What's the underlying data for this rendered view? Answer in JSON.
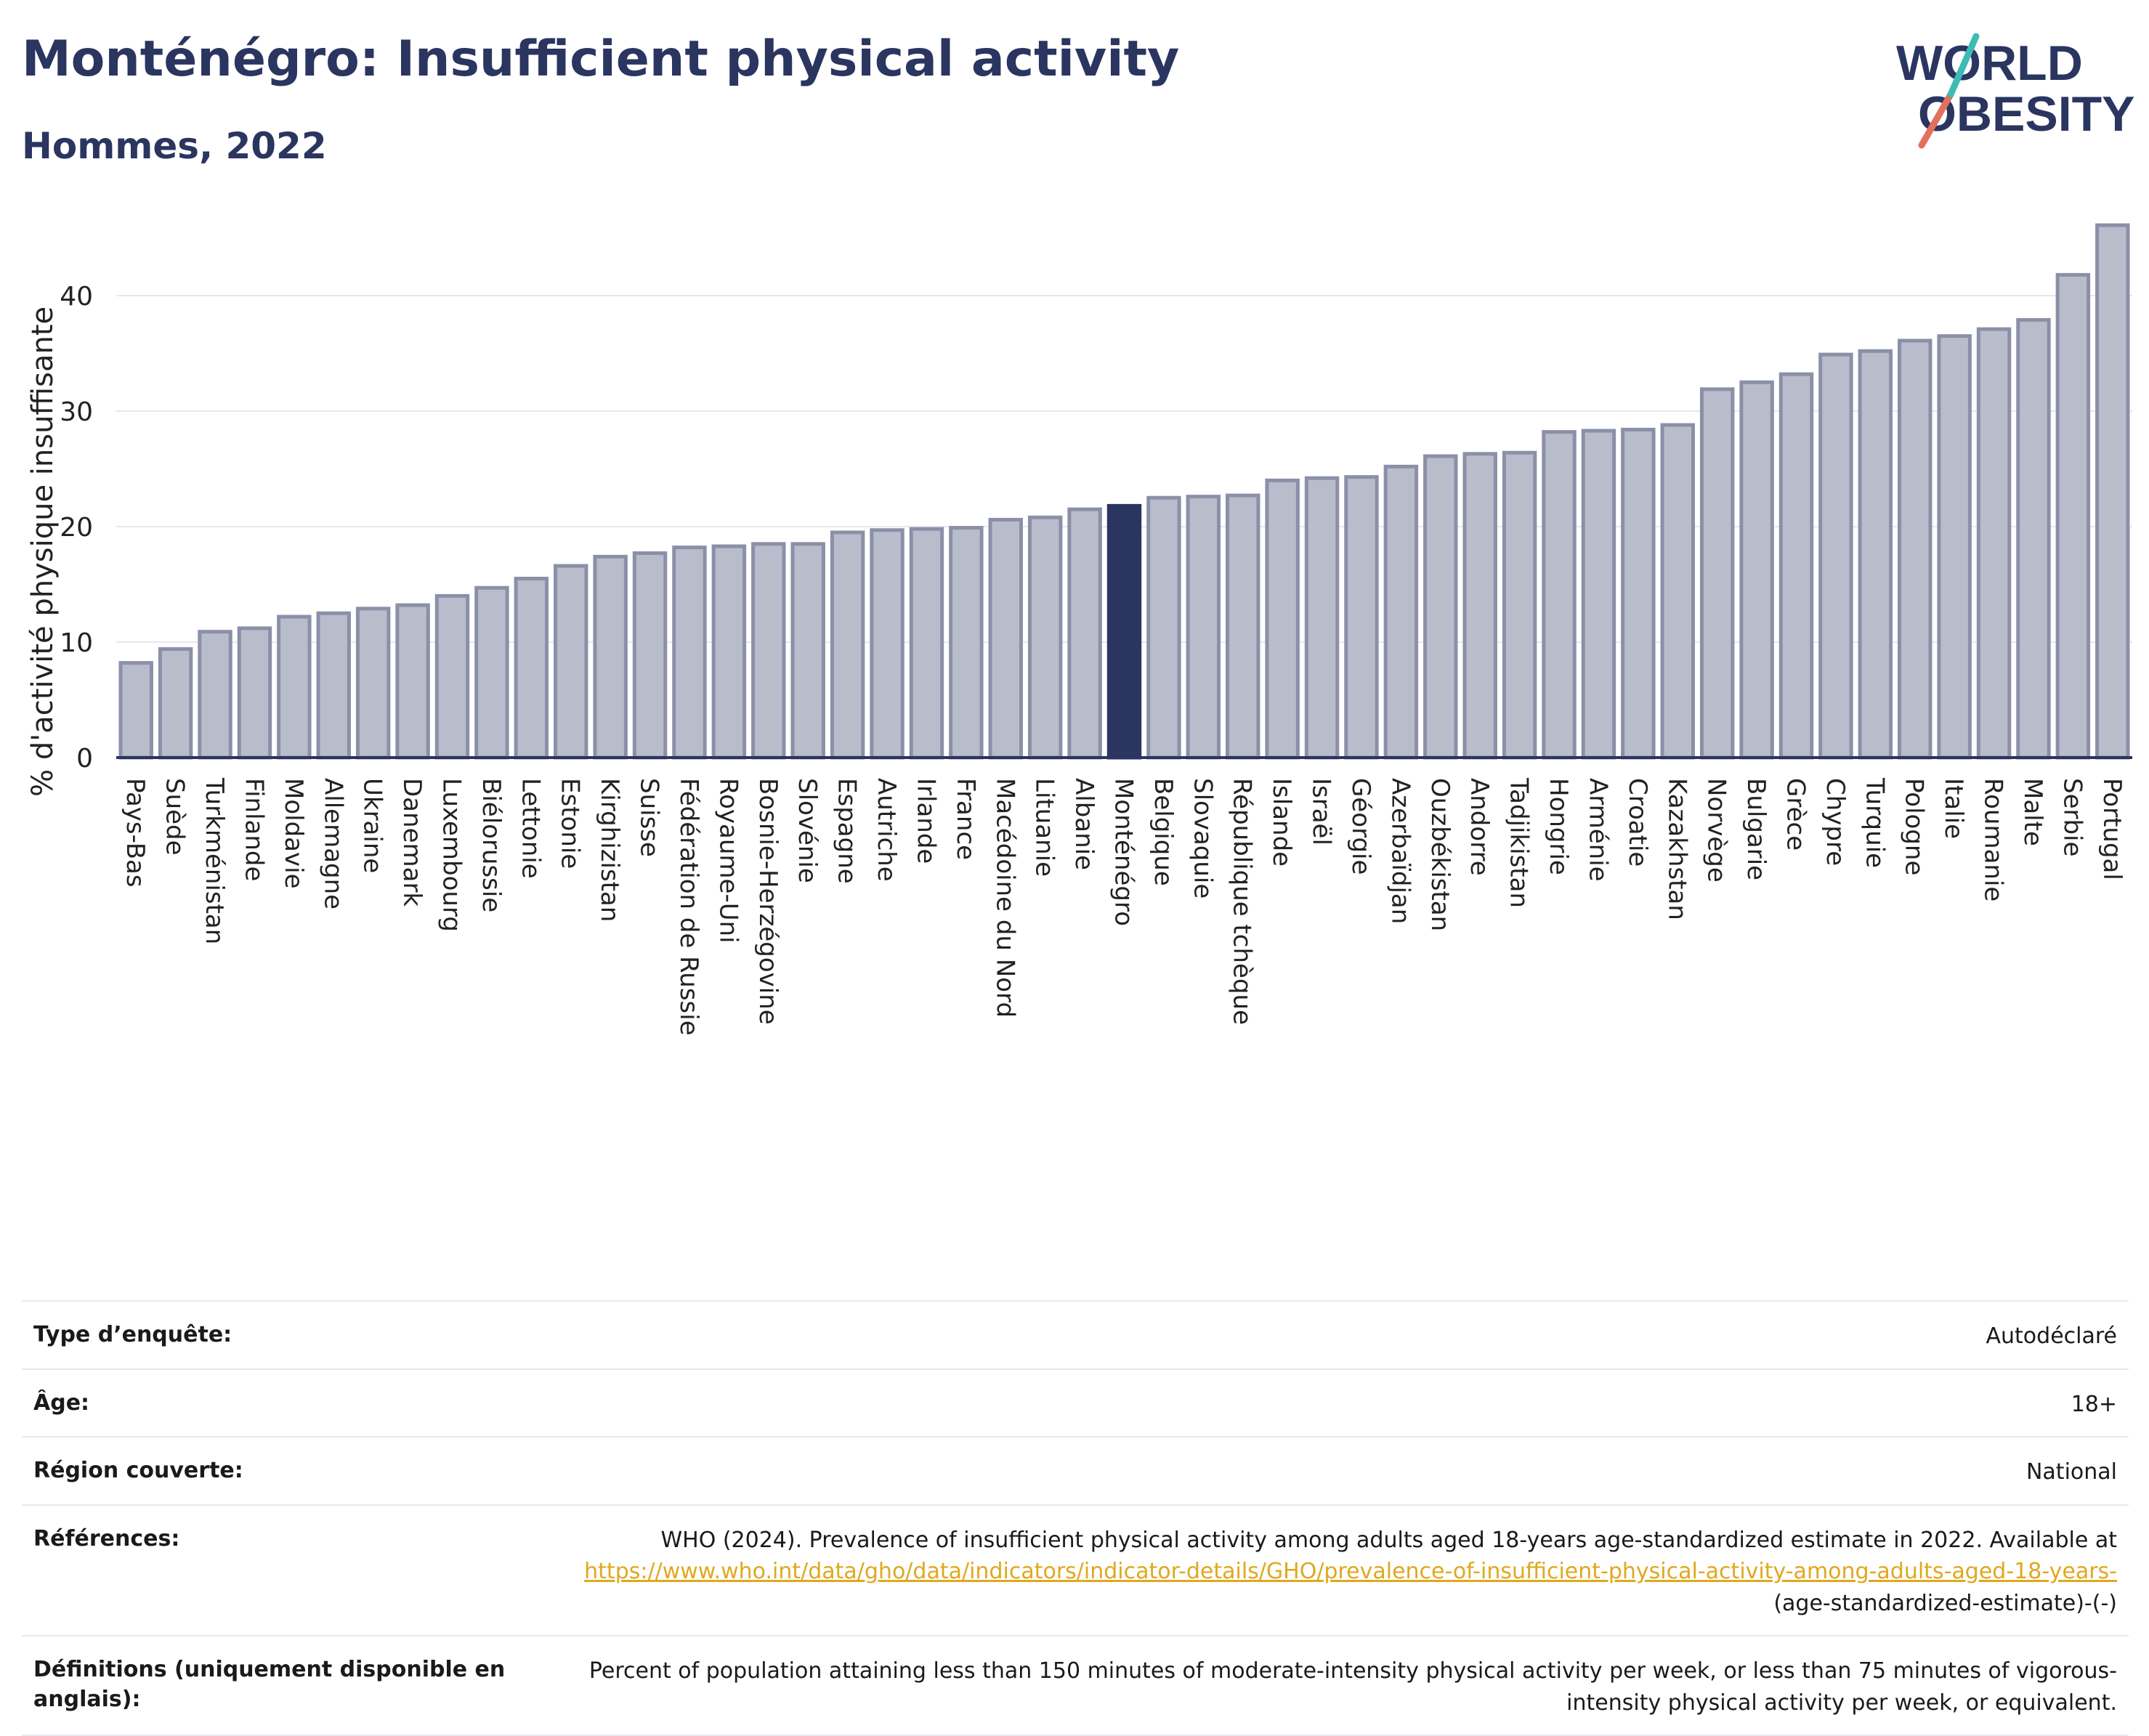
{
  "header": {
    "title": "Monténégro: Insufficient physical activity",
    "subtitle": "Hommes, 2022"
  },
  "logo": {
    "line1": "WORLD",
    "line2": "OBESITY"
  },
  "colors": {
    "title": "#2a3560",
    "bar": "#b9bccb",
    "bar_stroke": "#8b90a8",
    "highlight": "#2a3560",
    "link": "#e0a81e"
  },
  "chart_data": {
    "type": "bar",
    "title": "Monténégro: Insufficient physical activity",
    "subtitle": "Hommes, 2022",
    "ylabel": "% d'activité physique insuffisante",
    "xlabel": "",
    "ylim": [
      0,
      47
    ],
    "yticks": [
      0,
      10,
      20,
      30,
      40
    ],
    "grid": true,
    "highlight": "Monténégro",
    "categories": [
      "Pays-Bas",
      "Suède",
      "Turkménistan",
      "Finlande",
      "Moldavie",
      "Allemagne",
      "Ukraine",
      "Danemark",
      "Luxembourg",
      "Biélorussie",
      "Lettonie",
      "Estonie",
      "Kirghizistan",
      "Suisse",
      "Fédération de Russie",
      "Royaume-Uni",
      "Bosnie-Herzégovine",
      "Slovénie",
      "Espagne",
      "Autriche",
      "Irlande",
      "France",
      "Macédoine du Nord",
      "Lituanie",
      "Albanie",
      "Monténégro",
      "Belgique",
      "Slovaquie",
      "République tchèque",
      "Islande",
      "Israël",
      "Géorgie",
      "Azerbaïdjan",
      "Ouzbékistan",
      "Andorre",
      "Tadjikistan",
      "Hongrie",
      "Arménie",
      "Croatie",
      "Kazakhstan",
      "Norvège",
      "Bulgarie",
      "Grèce",
      "Chypre",
      "Turquie",
      "Pologne",
      "Italie",
      "Roumanie",
      "Malte",
      "Serbie",
      "Portugal"
    ],
    "values": [
      8.2,
      9.4,
      10.9,
      11.2,
      12.2,
      12.5,
      12.9,
      13.2,
      14.0,
      14.7,
      15.5,
      16.6,
      17.4,
      17.7,
      18.2,
      18.3,
      18.5,
      18.5,
      19.5,
      19.7,
      19.8,
      19.9,
      20.6,
      20.8,
      21.5,
      21.8,
      22.5,
      22.6,
      22.7,
      24.0,
      24.2,
      24.3,
      25.2,
      26.1,
      26.3,
      26.4,
      28.2,
      28.3,
      28.4,
      28.8,
      31.9,
      32.5,
      33.2,
      34.9,
      35.2,
      36.1,
      36.5,
      37.1,
      37.9,
      41.8,
      46.1
    ]
  },
  "metadata": {
    "rows": [
      {
        "label": "Type d’enquête:",
        "value": "Autodéclaré"
      },
      {
        "label": "Âge:",
        "value": "18+"
      },
      {
        "label": "Région couverte:",
        "value": "National"
      },
      {
        "label": "Références:",
        "value": "WHO (2024). Prevalence of insufficient physical activity among adults aged 18-years age-standardized estimate in 2022. Available at",
        "link": "https://www.who.int/data/gho/data/indicators/indicator-details/GHO/prevalence-of-insufficient-physical-activity-among-adults-aged-18-years-",
        "suffix": "(age-standardized-estimate)-(-)"
      },
      {
        "label": "Définitions (uniquement disponible en anglais):",
        "value": "Percent of population attaining less than 150 minutes of moderate-intensity physical activity per week, or less than 75 minutes of vigorous-intensity physical activity per week, or equivalent."
      }
    ]
  }
}
